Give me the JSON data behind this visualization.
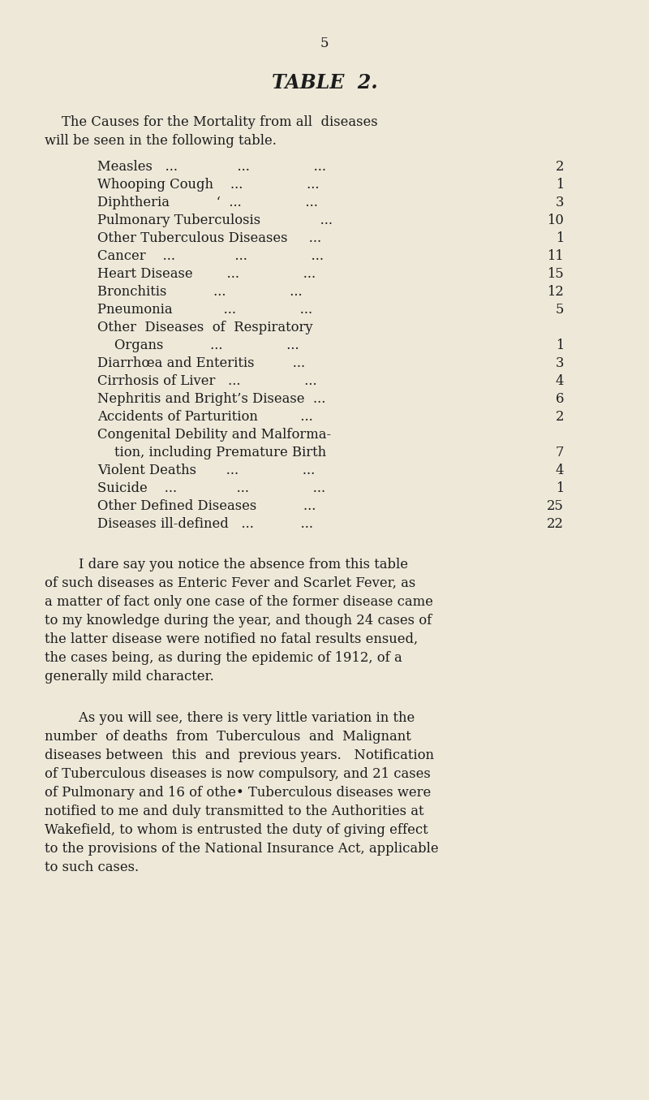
{
  "background_color": "#ede8d8",
  "page_number": "5",
  "title": "TABLE  2.",
  "intro_line1": "    The Causes for the Mortality from all  diseases",
  "intro_line2": "will be seen in the following table.",
  "table_rows": [
    {
      "label": "Measles   ...              ...               ...",
      "value": "2",
      "multiline": false
    },
    {
      "label": "Whooping Cough    ...               ...",
      "value": "1",
      "multiline": false
    },
    {
      "label": "Diphtheria           ‘  ...               ...",
      "value": "3",
      "multiline": false
    },
    {
      "label": "Pulmonary Tuberculosis              ...",
      "value": "10",
      "multiline": false
    },
    {
      "label": "Other Tuberculous Diseases     ...",
      "value": "1",
      "multiline": false
    },
    {
      "label": "Cancer    ...              ...               ...",
      "value": "11",
      "multiline": false
    },
    {
      "label": "Heart Disease        ...               ...",
      "value": "15",
      "multiline": false
    },
    {
      "label": "Bronchitis           ...               ...",
      "value": "12",
      "multiline": false
    },
    {
      "label": "Pneumonia            ...               ...",
      "value": "5",
      "multiline": false
    },
    {
      "label": "Other  Diseases  of  Respiratory",
      "label2": "    Organs           ...               ...",
      "value": "1",
      "multiline": true
    },
    {
      "label": "Diarrhœa and Enteritis         ...",
      "value": "3",
      "multiline": false
    },
    {
      "label": "Cirrhosis of Liver   ...               ...",
      "value": "4",
      "multiline": false
    },
    {
      "label": "Nephritis and Bright’s Disease  ...",
      "value": "6",
      "multiline": false
    },
    {
      "label": "Accidents of Parturition          ...",
      "value": "2",
      "multiline": false
    },
    {
      "label": "Congenital Debility and Malforma-",
      "label2": "    tion, including Premature Birth",
      "value": "7",
      "multiline": true
    },
    {
      "label": "Violent Deaths       ...               ...",
      "value": "4",
      "multiline": false
    },
    {
      "label": "Suicide    ...              ...               ...",
      "value": "1",
      "multiline": false
    },
    {
      "label": "Other Defined Diseases           ...",
      "value": "25",
      "multiline": false
    },
    {
      "label": "Diseases ill-defined   ...           ...",
      "value": "22",
      "multiline": false
    }
  ],
  "paragraph1_lines": [
    "        I dare say you notice the absence from this table",
    "of such diseases as Enteric Fever and Scarlet Fever, as",
    "a matter of fact only one case of the former disease came",
    "to my knowledge during the year, and though 24 cases of",
    "the latter disease were notified no fatal results ensued,",
    "the cases being, as during the epidemic of 1912, of a",
    "generally mild character."
  ],
  "paragraph2_lines": [
    "        As you will see, there is very little variation in the",
    "number  of deaths  from  Tuberculous  and  Malignant",
    "diseases between  this  and  previous years.   Notification",
    "of Tuberculous diseases is now compulsory, and 21 cases",
    "of Pulmonary and 16 of othe• Tuberculous diseases were",
    "notified to me and duly transmitted to the Authorities at",
    "Wakefield, to whom is entrusted the duty of giving effect",
    "to the provisions of the National Insurance Act, applicable",
    "to such cases."
  ],
  "font_color": "#1c1c1c",
  "title_fontsize": 17,
  "body_fontsize": 11.8,
  "table_fontsize": 11.8,
  "page_num_fontsize": 12
}
